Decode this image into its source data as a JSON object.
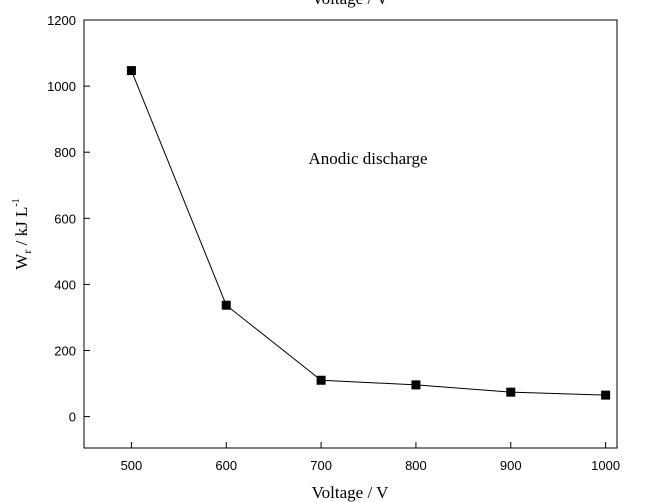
{
  "chart_data": {
    "type": "line",
    "top_label": "Voltage / V",
    "xlabel": "Voltage / V",
    "ylabel": {
      "main": "W",
      "sub": "r",
      "rest": " / kJ L",
      "sup": "-1"
    },
    "annotation": "Anodic discharge",
    "x": [
      500,
      600,
      700,
      800,
      900,
      1000
    ],
    "series": [
      {
        "color": "#000000",
        "values": [
          1047,
          337,
          110,
          96,
          74,
          65
        ]
      }
    ],
    "xlim": [
      450,
      1012
    ],
    "ylim": [
      -95,
      1200
    ],
    "xticks": [
      500,
      600,
      700,
      800,
      900,
      1000
    ],
    "yticks": [
      0,
      200,
      400,
      600,
      800,
      1000,
      1200
    ]
  }
}
